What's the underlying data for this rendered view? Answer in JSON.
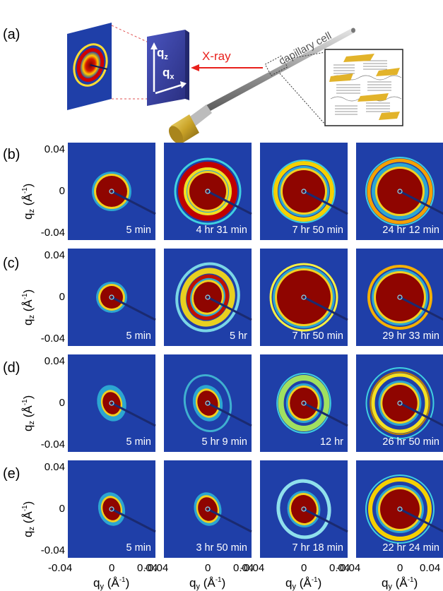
{
  "panel_labels": [
    "(a)",
    "(b)",
    "(c)",
    "(d)",
    "(e)"
  ],
  "schematic": {
    "xray_label": "X-ray",
    "capillary_label": "capillary cell",
    "detector_axis_z": "q",
    "detector_axis_z_sub": "z",
    "detector_axis_x": "q",
    "detector_axis_x_sub": "x"
  },
  "axes": {
    "y_label_base": "q",
    "y_label_sub": "z",
    "y_label_unit_open": "(Å",
    "y_label_sup": "-1",
    "y_label_unit_close": ")",
    "x_label_base": "q",
    "x_label_sub": "y",
    "x_label_unit_open": "(Å",
    "x_label_sup": "-1",
    "x_label_unit_close": ")",
    "y_ticks": [
      "0.04",
      "0",
      "-0.04"
    ],
    "x_ticks": [
      "-0.04",
      "0",
      "0.04"
    ]
  },
  "rows": [
    {
      "label": "(b)",
      "times": [
        "5 min",
        "4 hr 31 min",
        "7 hr 50 min",
        "24 hr 12 min"
      ]
    },
    {
      "label": "(c)",
      "times": [
        "5 min",
        "5 hr",
        "7 hr 50 min",
        "29 hr 33 min"
      ]
    },
    {
      "label": "(d)",
      "times": [
        "5 min",
        "5 hr 9 min",
        "12 hr",
        "26 hr 50 min"
      ]
    },
    {
      "label": "(e)",
      "times": [
        "5 min",
        "3 hr 50 min",
        "7 hr 18 min",
        "22 hr 24 min"
      ]
    }
  ],
  "colors": {
    "background": "#1f3fa8",
    "xray_arrow": "#e8201c",
    "detector": "#3a3fa0",
    "capillary": "#8a8a8a",
    "cap": "#c9a227"
  }
}
